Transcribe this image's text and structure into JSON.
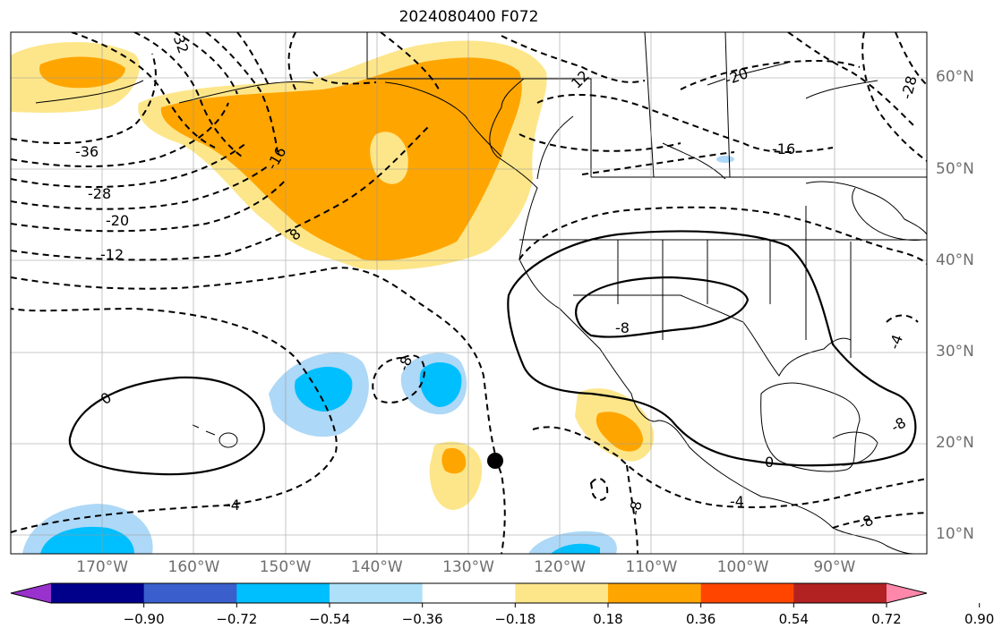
{
  "title": "2024080400 F072",
  "map": {
    "lat_labels": [
      {
        "text": "60°N",
        "lat": 60
      },
      {
        "text": "50°N",
        "lat": 50
      },
      {
        "text": "40°N",
        "lat": 40
      },
      {
        "text": "30°N",
        "lat": 30
      },
      {
        "text": "20°N",
        "lat": 20
      },
      {
        "text": "10°N",
        "lat": 10
      }
    ],
    "lon_labels": [
      {
        "text": "170°W",
        "lon": -170
      },
      {
        "text": "160°W",
        "lon": -160
      },
      {
        "text": "150°W",
        "lon": -150
      },
      {
        "text": "140°W",
        "lon": -140
      },
      {
        "text": "130°W",
        "lon": -130
      },
      {
        "text": "120°W",
        "lon": -120
      },
      {
        "text": "110°W",
        "lon": -110
      },
      {
        "text": "100°W",
        "lon": -100
      },
      {
        "text": "90°W",
        "lon": -90
      }
    ],
    "contour_labels": [
      "32",
      "-36",
      "-28",
      "-20",
      "-12",
      "-16",
      "8",
      "12",
      "-20",
      "-28",
      "-16",
      "-8",
      "0",
      "-4",
      "-8",
      "0",
      "-4",
      "-8",
      "-8",
      "-4",
      "-8"
    ],
    "colors": {
      "positive_light": "#fde68a",
      "positive_mid": "#ffa500",
      "negative_light": "#add8f7",
      "negative_mid": "#00bfff"
    }
  },
  "colorbar": {
    "ticks": [
      "−0.90",
      "−0.72",
      "−0.54",
      "−0.36",
      "−0.18",
      "0.18",
      "0.36",
      "0.54",
      "0.72",
      "0.90"
    ],
    "colors": [
      "#9932cc",
      "#00008b",
      "#3a5fcd",
      "#00bfff",
      "#aee0fa",
      "#ffffff",
      "#fde68a",
      "#ffa500",
      "#ff4500",
      "#b22222",
      "#ff88aa"
    ]
  }
}
